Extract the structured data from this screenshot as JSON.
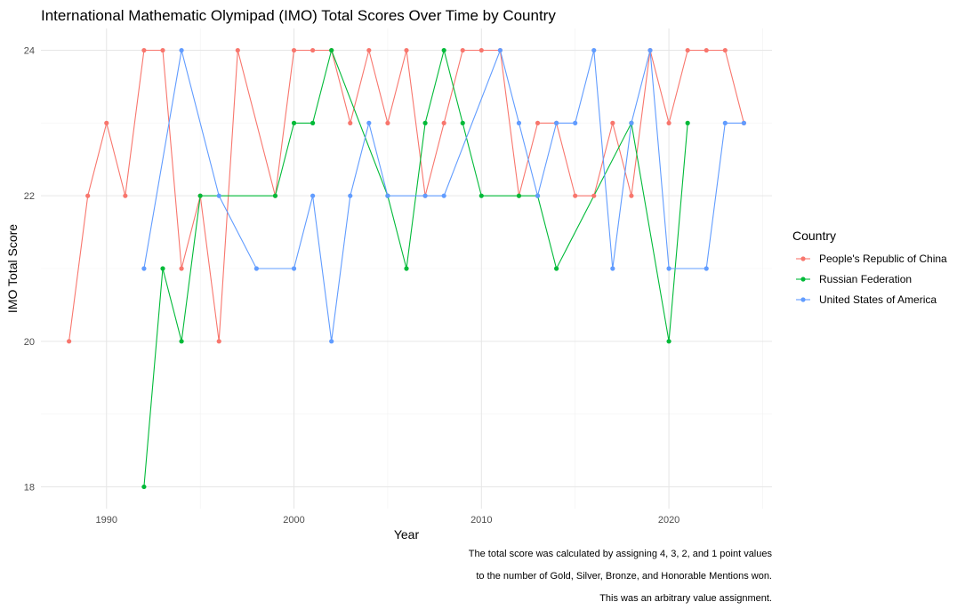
{
  "chart_data": {
    "type": "line",
    "title": "International Mathematic Olymipad (IMO) Total Scores Over Time by Country",
    "xlabel": "Year",
    "ylabel": "IMO Total Score",
    "xlim": [
      1986.5,
      2025.5
    ],
    "ylim": [
      17.7,
      24.3
    ],
    "x_ticks": [
      1990,
      2000,
      2010,
      2020
    ],
    "y_ticks": [
      18,
      20,
      22,
      24
    ],
    "grid": true,
    "legend": {
      "title": "Country",
      "placement": "right"
    },
    "caption": [
      "The total score was calculated by assigning 4, 3, 2, and 1 point values",
      "to the number of Gold, Silver, Bronze, and Honorable Mentions won.",
      "This was an arbitrary value assignment."
    ],
    "series": [
      {
        "name": "People's Republic of China",
        "color": "#F8766D",
        "points": [
          [
            1988,
            20
          ],
          [
            1989,
            22
          ],
          [
            1990,
            23
          ],
          [
            1991,
            22
          ],
          [
            1992,
            24
          ],
          [
            1993,
            24
          ],
          [
            1994,
            21
          ],
          [
            1995,
            22
          ],
          [
            1996,
            20
          ],
          [
            1997,
            24
          ],
          [
            1999,
            22
          ],
          [
            2000,
            24
          ],
          [
            2001,
            24
          ],
          [
            2002,
            24
          ],
          [
            2003,
            23
          ],
          [
            2004,
            24
          ],
          [
            2005,
            23
          ],
          [
            2006,
            24
          ],
          [
            2007,
            22
          ],
          [
            2008,
            23
          ],
          [
            2009,
            24
          ],
          [
            2010,
            24
          ],
          [
            2011,
            24
          ],
          [
            2012,
            22
          ],
          [
            2013,
            23
          ],
          [
            2014,
            23
          ],
          [
            2015,
            22
          ],
          [
            2016,
            22
          ],
          [
            2017,
            23
          ],
          [
            2018,
            22
          ],
          [
            2019,
            24
          ],
          [
            2020,
            23
          ],
          [
            2021,
            24
          ],
          [
            2022,
            24
          ],
          [
            2023,
            24
          ],
          [
            2024,
            23
          ]
        ]
      },
      {
        "name": "Russian Federation",
        "color": "#00BA38",
        "points": [
          [
            1992,
            18
          ],
          [
            1993,
            21
          ],
          [
            1994,
            20
          ],
          [
            1995,
            22
          ],
          [
            1999,
            22
          ],
          [
            2000,
            23
          ],
          [
            2001,
            23
          ],
          [
            2002,
            24
          ],
          [
            2005,
            22
          ],
          [
            2006,
            21
          ],
          [
            2007,
            23
          ],
          [
            2008,
            24
          ],
          [
            2009,
            23
          ],
          [
            2010,
            22
          ],
          [
            2012,
            22
          ],
          [
            2013,
            22
          ],
          [
            2014,
            21
          ],
          [
            2018,
            23
          ],
          [
            2020,
            20
          ],
          [
            2021,
            23
          ]
        ]
      },
      {
        "name": "United States of America",
        "color": "#619CFF",
        "points": [
          [
            1992,
            21
          ],
          [
            1994,
            24
          ],
          [
            1996,
            22
          ],
          [
            1998,
            21
          ],
          [
            2000,
            21
          ],
          [
            2001,
            22
          ],
          [
            2002,
            20
          ],
          [
            2003,
            22
          ],
          [
            2004,
            23
          ],
          [
            2005,
            22
          ],
          [
            2007,
            22
          ],
          [
            2008,
            22
          ],
          [
            2011,
            24
          ],
          [
            2012,
            23
          ],
          [
            2013,
            22
          ],
          [
            2014,
            23
          ],
          [
            2015,
            23
          ],
          [
            2016,
            24
          ],
          [
            2017,
            21
          ],
          [
            2018,
            23
          ],
          [
            2019,
            24
          ],
          [
            2020,
            21
          ],
          [
            2022,
            21
          ],
          [
            2023,
            23
          ],
          [
            2024,
            23
          ]
        ]
      }
    ]
  }
}
